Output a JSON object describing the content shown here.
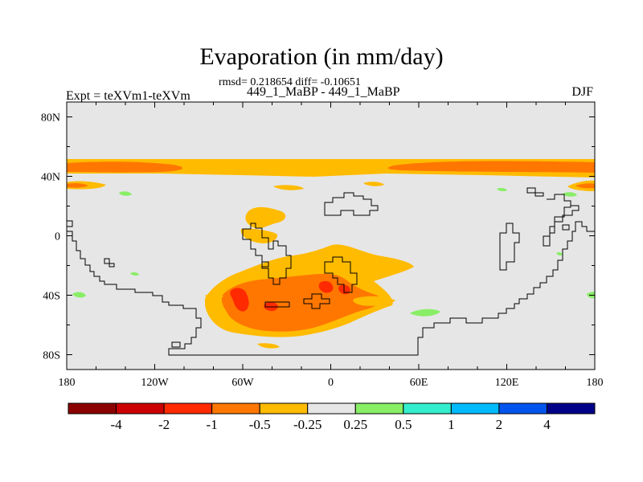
{
  "title": "Evaporation (in mm/day)",
  "stats": "rmsd= 0.218654 diff= -0.10651",
  "subtitle": "449_1_MaBP - 449_1_MaBP",
  "expt": "Expt = teXVm1-teXVm",
  "season": "DJF",
  "axes": {
    "x_ticks": [
      "180",
      "120W",
      "60W",
      "0",
      "60E",
      "120E",
      "180"
    ],
    "y_ticks": [
      "80N",
      "40N",
      "0",
      "40S",
      "80S"
    ]
  },
  "colorbar": {
    "colors": [
      "#8b0000",
      "#cc0000",
      "#ff2a00",
      "#ff7700",
      "#ffbb00",
      "#e6e6e6",
      "#88ee66",
      "#33eecc",
      "#00bbff",
      "#0055ee",
      "#000088"
    ],
    "labels": [
      "-4",
      "-2",
      "-1",
      "-0.5",
      "-0.25",
      "0.25",
      "0.5",
      "1",
      "2",
      "4"
    ]
  },
  "colors": {
    "background": "#e6e6e6",
    "neg_light": "#ffbb00",
    "neg_mid": "#ff7700",
    "neg_strong": "#ff2a00",
    "pos_light": "#88ee66"
  }
}
